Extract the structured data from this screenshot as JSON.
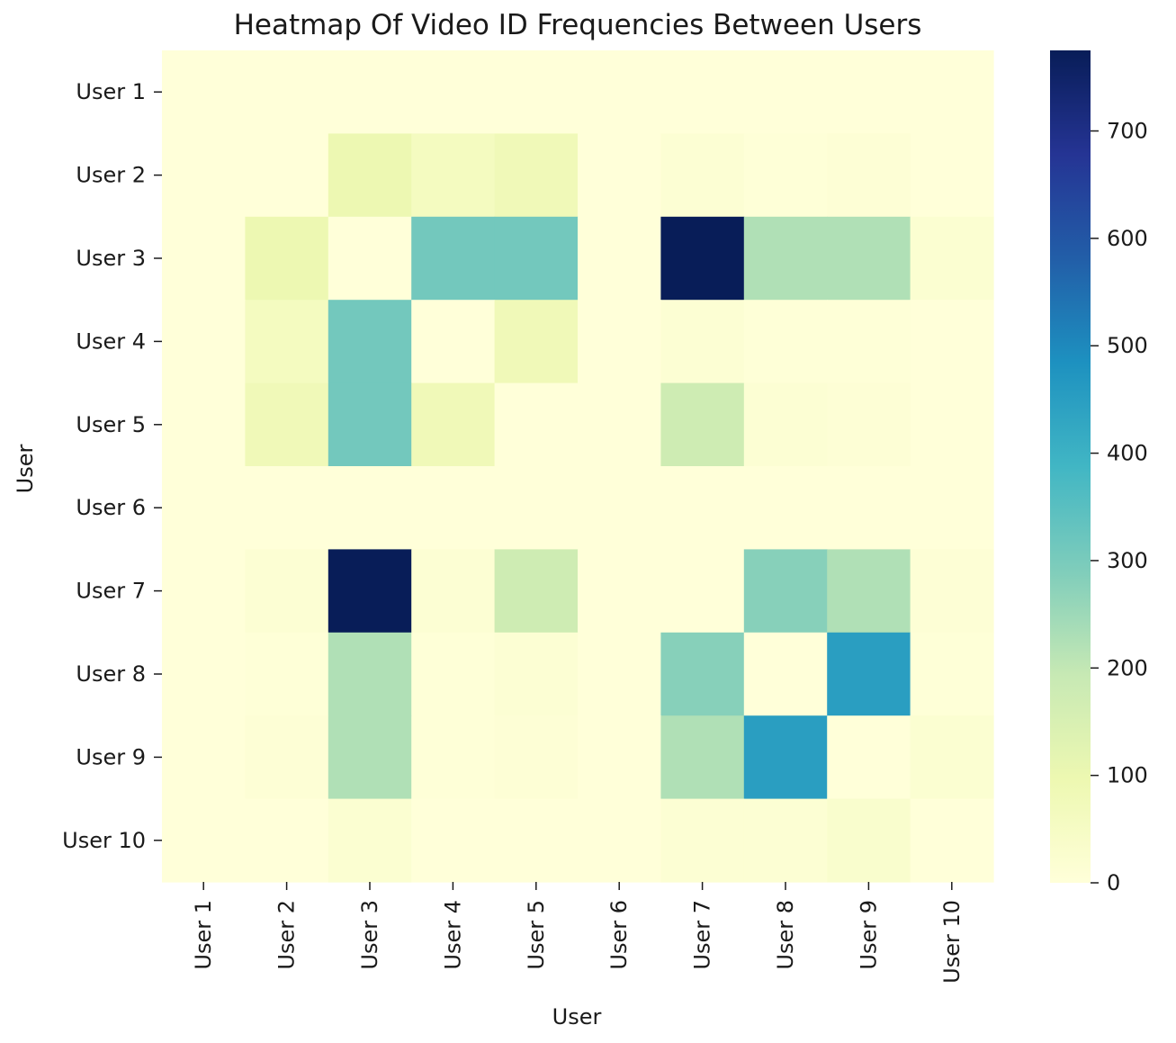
{
  "chart_data": {
    "type": "heatmap",
    "title": "Heatmap Of Video ID Frequencies Between Users",
    "xlabel": "User",
    "ylabel": "User",
    "x_categories": [
      "User 1",
      "User 2",
      "User 3",
      "User 4",
      "User 5",
      "User 6",
      "User 7",
      "User 8",
      "User 9",
      "User 10"
    ],
    "y_categories": [
      "User 1",
      "User 2",
      "User 3",
      "User 4",
      "User 5",
      "User 6",
      "User 7",
      "User 8",
      "User 9",
      "User 10"
    ],
    "values": [
      [
        0,
        0,
        0,
        0,
        0,
        0,
        0,
        0,
        0,
        0
      ],
      [
        0,
        0,
        95,
        60,
        80,
        0,
        15,
        5,
        10,
        0
      ],
      [
        0,
        95,
        0,
        310,
        310,
        0,
        775,
        225,
        225,
        20
      ],
      [
        0,
        60,
        310,
        0,
        80,
        0,
        15,
        5,
        5,
        0
      ],
      [
        0,
        80,
        310,
        80,
        0,
        0,
        175,
        15,
        10,
        0
      ],
      [
        0,
        0,
        0,
        0,
        0,
        0,
        0,
        0,
        0,
        0
      ],
      [
        0,
        15,
        775,
        15,
        175,
        0,
        0,
        280,
        225,
        10
      ],
      [
        0,
        5,
        225,
        5,
        15,
        0,
        280,
        0,
        450,
        5
      ],
      [
        0,
        10,
        225,
        5,
        10,
        0,
        225,
        450,
        0,
        20
      ],
      [
        0,
        0,
        20,
        0,
        0,
        0,
        15,
        15,
        30,
        0
      ]
    ],
    "colorbar": {
      "min": 0,
      "max": 775,
      "ticks": [
        0,
        100,
        200,
        300,
        400,
        500,
        600,
        700
      ],
      "colormap": "YlGnBu",
      "stops": [
        "#ffffd9",
        "#edf8b1",
        "#c7e9b4",
        "#7fcdbb",
        "#41b6c4",
        "#1d91c0",
        "#225ea8",
        "#253494",
        "#081d58"
      ]
    },
    "grid": false,
    "legend": "colorbar-right"
  }
}
